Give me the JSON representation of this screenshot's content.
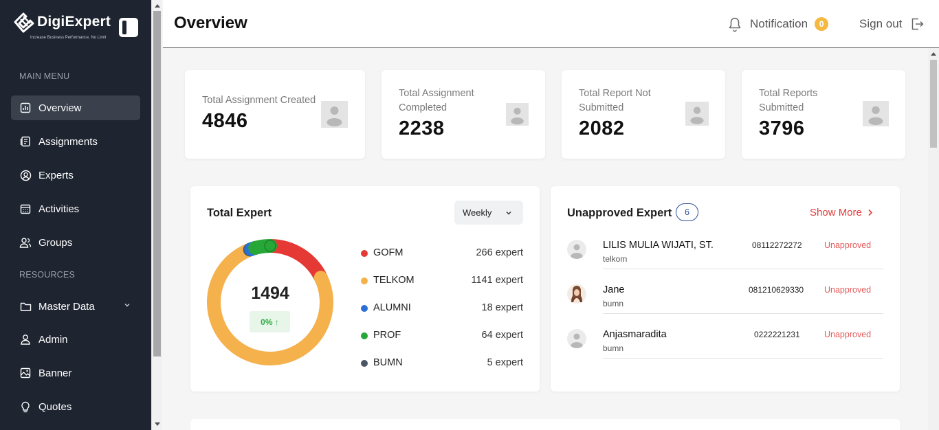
{
  "brand": {
    "name": "DigiExpert",
    "tagline": "Increase Business Performance, No Limit"
  },
  "sidebar": {
    "main_heading": "MAIN MENU",
    "resources_heading": "RESOURCES",
    "main_items": [
      {
        "label": "Overview",
        "icon": "chart-icon",
        "active": true
      },
      {
        "label": "Assignments",
        "icon": "document-icon"
      },
      {
        "label": "Experts",
        "icon": "user-circle-icon"
      },
      {
        "label": "Activities",
        "icon": "calendar-icon"
      },
      {
        "label": "Groups",
        "icon": "group-icon"
      }
    ],
    "resource_items": [
      {
        "label": "Master Data",
        "icon": "folder-icon",
        "has_dropdown": true
      },
      {
        "label": "Admin",
        "icon": "person-icon"
      },
      {
        "label": "Banner",
        "icon": "image-icon"
      },
      {
        "label": "Quotes",
        "icon": "lightbulb-icon"
      }
    ]
  },
  "header": {
    "title": "Overview",
    "notification_label": "Notification",
    "notification_count": "0",
    "signout_label": "Sign out"
  },
  "stats": [
    {
      "label": "Total Assignment Created",
      "value": "4846"
    },
    {
      "label": "Total Assignment Completed",
      "value": "2238"
    },
    {
      "label": "Total Report Not Submitted",
      "value": "2082"
    },
    {
      "label": "Total Reports Submitted",
      "value": "3796"
    }
  ],
  "total_expert": {
    "title": "Total Expert",
    "period": "Weekly",
    "total": "1494",
    "trend": "0% ↑",
    "segments": [
      {
        "name": "GOFM",
        "count": "266 expert",
        "value": 266,
        "color": "#e53935"
      },
      {
        "name": "TELKOM",
        "count": "1141 expert",
        "value": 1141,
        "color": "#f5b14c"
      },
      {
        "name": "ALUMNI",
        "count": "18 expert",
        "value": 18,
        "color": "#2b6fd6"
      },
      {
        "name": "PROF",
        "count": "64 expert",
        "value": 64,
        "color": "#26a737"
      },
      {
        "name": "BUMN",
        "count": "5 expert",
        "value": 5,
        "color": "#4b5563"
      }
    ]
  },
  "unapproved": {
    "title": "Unapproved Expert",
    "count": "6",
    "show_more": "Show More",
    "rows": [
      {
        "name": "LILIS MULIA WIJATI, ST.",
        "org": "telkom",
        "phone": "08112272272",
        "status": "Unapproved",
        "avatar": "default"
      },
      {
        "name": "Jane",
        "org": "bumn",
        "phone": "081210629330",
        "status": "Unapproved",
        "avatar": "photo"
      },
      {
        "name": "Anjasmaradita",
        "org": "bumn",
        "phone": "0222221231",
        "status": "Unapproved",
        "avatar": "default"
      }
    ]
  },
  "colors": {
    "sidebar_bg": "#1e2430",
    "accent_red": "#e23a3a",
    "badge_yellow": "#f5b942",
    "pill_blue": "#2d4f9c"
  }
}
